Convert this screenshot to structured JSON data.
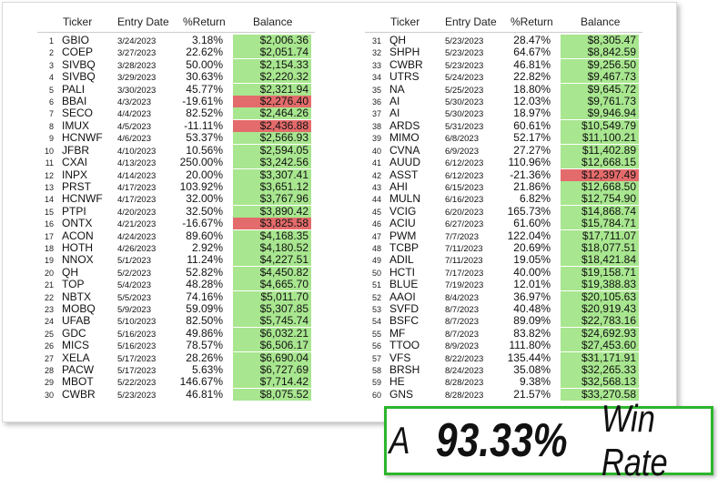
{
  "tables": [
    {
      "headers": [
        "Ticker",
        "Entry Date",
        "%Return",
        "Balance"
      ],
      "rows": [
        [
          "1",
          "GBIO",
          "3/24/2023",
          "3.18%",
          "$2,006.36"
        ],
        [
          "2",
          "COEP",
          "3/27/2023",
          "22.62%",
          "$2,051.74"
        ],
        [
          "3",
          "SIVBQ",
          "3/28/2023",
          "50.00%",
          "$2,154.33"
        ],
        [
          "4",
          "SIVBQ",
          "3/29/2023",
          "30.63%",
          "$2,220.32"
        ],
        [
          "5",
          "PALI",
          "3/30/2023",
          "45.77%",
          "$2,321.94"
        ],
        [
          "6",
          "BBAI",
          "4/3/2023",
          "-19.61%",
          "$2,276.40"
        ],
        [
          "7",
          "SECO",
          "4/4/2023",
          "82.52%",
          "$2,464.26"
        ],
        [
          "8",
          "IMUX",
          "4/5/2023",
          "-11.11%",
          "$2,436.88"
        ],
        [
          "9",
          "HCNWF",
          "4/6/2023",
          "53.37%",
          "$2,566.93"
        ],
        [
          "10",
          "JFBR",
          "4/10/2023",
          "10.56%",
          "$2,594.05"
        ],
        [
          "11",
          "CXAI",
          "4/13/2023",
          "250.00%",
          "$3,242.56"
        ],
        [
          "12",
          "INPX",
          "4/14/2023",
          "20.00%",
          "$3,307.41"
        ],
        [
          "13",
          "PRST",
          "4/17/2023",
          "103.92%",
          "$3,651.12"
        ],
        [
          "14",
          "HCNWF",
          "4/17/2023",
          "32.00%",
          "$3,767.96"
        ],
        [
          "15",
          "PTPI",
          "4/20/2023",
          "32.50%",
          "$3,890.42"
        ],
        [
          "16",
          "ONTX",
          "4/21/2023",
          "-16.67%",
          "$3,825.58"
        ],
        [
          "17",
          "ACON",
          "4/24/2023",
          "89.60%",
          "$4,168.35"
        ],
        [
          "18",
          "HOTH",
          "4/26/2023",
          "2.92%",
          "$4,180.52"
        ],
        [
          "19",
          "NNOX",
          "5/1/2023",
          "11.24%",
          "$4,227.51"
        ],
        [
          "20",
          "QH",
          "5/2/2023",
          "52.82%",
          "$4,450.82"
        ],
        [
          "21",
          "TOP",
          "5/4/2023",
          "48.28%",
          "$4,665.70"
        ],
        [
          "22",
          "NBTX",
          "5/5/2023",
          "74.16%",
          "$5,011.70"
        ],
        [
          "23",
          "MOBQ",
          "5/9/2023",
          "59.09%",
          "$5,307.85"
        ],
        [
          "24",
          "UFAB",
          "5/10/2023",
          "82.50%",
          "$5,745.74"
        ],
        [
          "25",
          "GDC",
          "5/16/2023",
          "49.86%",
          "$6,032.21"
        ],
        [
          "26",
          "MICS",
          "5/16/2023",
          "78.57%",
          "$6,506.17"
        ],
        [
          "27",
          "XELA",
          "5/17/2023",
          "28.26%",
          "$6,690.04"
        ],
        [
          "28",
          "PACW",
          "5/17/2023",
          "5.63%",
          "$6,727.69"
        ],
        [
          "29",
          "MBOT",
          "5/22/2023",
          "146.67%",
          "$7,714.42"
        ],
        [
          "30",
          "CWBR",
          "5/23/2023",
          "46.81%",
          "$8,075.52"
        ]
      ]
    },
    {
      "headers": [
        "Ticker",
        "Entry Date",
        "%Return",
        "Balance"
      ],
      "rows": [
        [
          "31",
          "QH",
          "5/23/2023",
          "28.47%",
          "$8,305.47"
        ],
        [
          "32",
          "SHPH",
          "5/23/2023",
          "64.67%",
          "$8,842.59"
        ],
        [
          "33",
          "CWBR",
          "5/23/2023",
          "46.81%",
          "$9,256.50"
        ],
        [
          "34",
          "UTRS",
          "5/24/2023",
          "22.82%",
          "$9,467.73"
        ],
        [
          "35",
          "NA",
          "5/25/2023",
          "18.80%",
          "$9,645.72"
        ],
        [
          "36",
          "AI",
          "5/30/2023",
          "12.03%",
          "$9,761.73"
        ],
        [
          "37",
          "AI",
          "5/30/2023",
          "18.97%",
          "$9,946.94"
        ],
        [
          "38",
          "ARDS",
          "5/31/2023",
          "60.61%",
          "$10,549.79"
        ],
        [
          "39",
          "MIMO",
          "6/8/2023",
          "52.17%",
          "$11,100.21"
        ],
        [
          "40",
          "CVNA",
          "6/9/2023",
          "27.27%",
          "$11,402.89"
        ],
        [
          "41",
          "AUUD",
          "6/12/2023",
          "110.96%",
          "$12,668.15"
        ],
        [
          "42",
          "ASST",
          "6/12/2023",
          "-21.36%",
          "$12,397.49"
        ],
        [
          "43",
          "AHI",
          "6/15/2023",
          "21.86%",
          "$12,668.50"
        ],
        [
          "44",
          "MULN",
          "6/16/2023",
          "6.82%",
          "$12,754.90"
        ],
        [
          "45",
          "VCIG",
          "6/20/2023",
          "165.73%",
          "$14,868.74"
        ],
        [
          "46",
          "ACIU",
          "6/27/2023",
          "61.60%",
          "$15,784.71"
        ],
        [
          "47",
          "PWM",
          "7/7/2023",
          "122.04%",
          "$17,711.07"
        ],
        [
          "48",
          "TCBP",
          "7/11/2023",
          "20.69%",
          "$18,077.51"
        ],
        [
          "49",
          "ADIL",
          "7/11/2023",
          "19.05%",
          "$18,421.84"
        ],
        [
          "50",
          "HCTI",
          "7/17/2023",
          "40.00%",
          "$19,158.71"
        ],
        [
          "51",
          "BLUE",
          "7/19/2023",
          "12.01%",
          "$19,388.83"
        ],
        [
          "52",
          "AAOI",
          "8/4/2023",
          "36.97%",
          "$20,105.63"
        ],
        [
          "53",
          "SVFD",
          "8/7/2023",
          "40.48%",
          "$20,919.43"
        ],
        [
          "54",
          "BSFC",
          "8/7/2023",
          "89.09%",
          "$22,783.16"
        ],
        [
          "55",
          "MF",
          "8/7/2023",
          "83.82%",
          "$24,692.93"
        ],
        [
          "56",
          "TTOO",
          "8/9/2023",
          "111.80%",
          "$27,453.60"
        ],
        [
          "57",
          "VFS",
          "8/22/2023",
          "135.44%",
          "$31,171.91"
        ],
        [
          "58",
          "BRSH",
          "8/24/2023",
          "35.08%",
          "$32,265.33"
        ],
        [
          "59",
          "HE",
          "8/28/2023",
          "9.38%",
          "$32,568.13"
        ],
        [
          "60",
          "GNS",
          "8/28/2023",
          "21.57%",
          "$33,270.58"
        ]
      ]
    }
  ],
  "banner": {
    "prefix": "A",
    "rate": "93.33%",
    "suffix": "Win Rate"
  }
}
